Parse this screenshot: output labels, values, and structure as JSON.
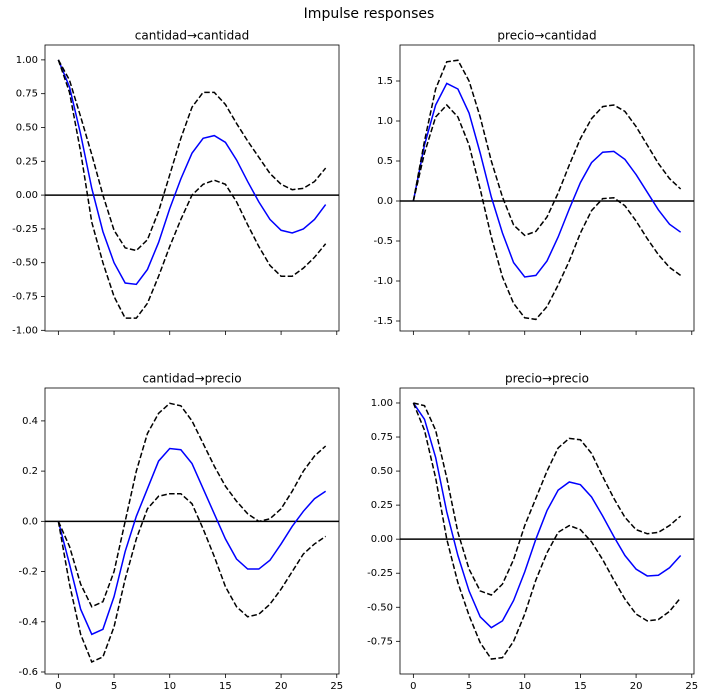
{
  "title": "Impulse responses",
  "chart_data": [
    {
      "type": "line",
      "title": "cantidad→cantidad",
      "x": [
        0,
        1,
        2,
        3,
        4,
        5,
        6,
        7,
        8,
        9,
        10,
        11,
        12,
        13,
        14,
        15,
        16,
        17,
        18,
        19,
        20,
        21,
        22,
        23,
        24
      ],
      "series": [
        {
          "color": "#0000ff",
          "dashed": false,
          "values": [
            1.0,
            0.8,
            0.45,
            0.05,
            -0.27,
            -0.5,
            -0.65,
            -0.66,
            -0.55,
            -0.35,
            -0.1,
            0.12,
            0.31,
            0.42,
            0.44,
            0.39,
            0.26,
            0.1,
            -0.05,
            -0.18,
            -0.26,
            -0.28,
            -0.25,
            -0.18,
            -0.07
          ]
        },
        {
          "color": "#000000",
          "dashed": true,
          "values": [
            1.0,
            0.85,
            0.58,
            0.3,
            0.0,
            -0.26,
            -0.39,
            -0.41,
            -0.33,
            -0.12,
            0.15,
            0.42,
            0.65,
            0.76,
            0.76,
            0.67,
            0.53,
            0.4,
            0.28,
            0.16,
            0.08,
            0.04,
            0.05,
            0.1,
            0.2
          ]
        },
        {
          "color": "#000000",
          "dashed": true,
          "values": [
            1.0,
            0.76,
            0.32,
            -0.2,
            -0.5,
            -0.75,
            -0.91,
            -0.91,
            -0.8,
            -0.6,
            -0.38,
            -0.18,
            0.0,
            0.08,
            0.11,
            0.08,
            -0.05,
            -0.22,
            -0.38,
            -0.52,
            -0.6,
            -0.6,
            -0.54,
            -0.46,
            -0.36
          ]
        }
      ],
      "hline": 0,
      "xlim": [
        -1.2,
        25.2
      ],
      "ylim": [
        -1.005,
        1.11
      ],
      "xticks": [
        0,
        5,
        10,
        15,
        20,
        25
      ],
      "show_xtick_labels": false,
      "yticks": [
        {
          "value": -1,
          "label": "-1.00"
        },
        -0.75,
        {
          "value": -0.5,
          "label": "-0.50"
        },
        -0.25,
        {
          "value": 0,
          "label": "0.00"
        },
        0.25,
        {
          "value": 0.5,
          "label": "0.50"
        },
        0.75,
        {
          "value": 1,
          "label": "1.00"
        }
      ]
    },
    {
      "type": "line",
      "title": "precio→cantidad",
      "x": [
        0,
        1,
        2,
        3,
        4,
        5,
        6,
        7,
        8,
        9,
        10,
        11,
        12,
        13,
        14,
        15,
        16,
        17,
        18,
        19,
        20,
        21,
        22,
        23,
        24
      ],
      "series": [
        {
          "color": "#0000ff",
          "dashed": false,
          "values": [
            0,
            0.7,
            1.2,
            1.47,
            1.4,
            1.1,
            0.6,
            0.05,
            -0.4,
            -0.77,
            -0.95,
            -0.93,
            -0.75,
            -0.45,
            -0.1,
            0.23,
            0.48,
            0.61,
            0.62,
            0.52,
            0.33,
            0.11,
            -0.11,
            -0.29,
            -0.39
          ]
        },
        {
          "color": "#000000",
          "dashed": true,
          "values": [
            0,
            0.75,
            1.4,
            1.74,
            1.76,
            1.5,
            1.05,
            0.5,
            0.05,
            -0.3,
            -0.43,
            -0.38,
            -0.2,
            0.1,
            0.45,
            0.78,
            1.03,
            1.18,
            1.2,
            1.12,
            0.93,
            0.7,
            0.47,
            0.28,
            0.15
          ]
        },
        {
          "color": "#000000",
          "dashed": true,
          "values": [
            0,
            0.6,
            1.05,
            1.2,
            1.05,
            0.7,
            0.15,
            -0.45,
            -0.95,
            -1.28,
            -1.46,
            -1.48,
            -1.32,
            -1.05,
            -0.75,
            -0.4,
            -0.12,
            0.03,
            0.04,
            -0.06,
            -0.25,
            -0.47,
            -0.67,
            -0.83,
            -0.93
          ]
        }
      ],
      "hline": 0,
      "xlim": [
        -1.2,
        25.2
      ],
      "ylim": [
        -1.625,
        1.95
      ],
      "xticks": [
        0,
        5,
        10,
        15,
        20,
        25
      ],
      "show_xtick_labels": false,
      "yticks": [
        -1.5,
        {
          "value": -1,
          "label": "-1.0"
        },
        -0.5,
        {
          "value": 0,
          "label": "0.0"
        },
        0.5,
        {
          "value": 1,
          "label": "1.0"
        },
        1.5
      ]
    },
    {
      "type": "line",
      "title": "cantidad→precio",
      "x": [
        0,
        1,
        2,
        3,
        4,
        5,
        6,
        7,
        8,
        9,
        10,
        11,
        12,
        13,
        14,
        15,
        16,
        17,
        18,
        19,
        20,
        21,
        22,
        23,
        24
      ],
      "series": [
        {
          "color": "#0000ff",
          "dashed": false,
          "values": [
            0,
            -0.17,
            -0.35,
            -0.45,
            -0.43,
            -0.3,
            -0.12,
            0.02,
            0.13,
            0.24,
            0.29,
            0.285,
            0.23,
            0.13,
            0.03,
            -0.07,
            -0.15,
            -0.19,
            -0.19,
            -0.155,
            -0.09,
            -0.02,
            0.04,
            0.09,
            0.12
          ]
        },
        {
          "color": "#000000",
          "dashed": true,
          "values": [
            0,
            -0.1,
            -0.25,
            -0.34,
            -0.32,
            -0.2,
            0.0,
            0.2,
            0.35,
            0.43,
            0.47,
            0.46,
            0.4,
            0.31,
            0.22,
            0.14,
            0.08,
            0.03,
            0.0,
            0.01,
            0.05,
            0.12,
            0.2,
            0.26,
            0.3
          ]
        },
        {
          "color": "#000000",
          "dashed": true,
          "values": [
            0,
            -0.25,
            -0.45,
            -0.56,
            -0.54,
            -0.42,
            -0.23,
            -0.07,
            0.05,
            0.1,
            0.11,
            0.11,
            0.07,
            -0.03,
            -0.14,
            -0.26,
            -0.34,
            -0.38,
            -0.37,
            -0.33,
            -0.27,
            -0.2,
            -0.13,
            -0.09,
            -0.06
          ]
        }
      ],
      "hline": 0,
      "xlim": [
        -1.2,
        25.2
      ],
      "ylim": [
        -0.608,
        0.531
      ],
      "xticks": [
        0,
        5,
        10,
        15,
        20,
        25
      ],
      "show_xtick_labels": true,
      "yticks": [
        -0.6,
        -0.4,
        -0.2,
        {
          "value": 0,
          "label": "0.0"
        },
        0.2,
        0.4
      ]
    },
    {
      "type": "line",
      "title": "precio→precio",
      "x": [
        0,
        1,
        2,
        3,
        4,
        5,
        6,
        7,
        8,
        9,
        10,
        11,
        12,
        13,
        14,
        15,
        16,
        17,
        18,
        19,
        20,
        21,
        22,
        23,
        24
      ],
      "series": [
        {
          "color": "#0000ff",
          "dashed": false,
          "values": [
            1.0,
            0.88,
            0.6,
            0.2,
            -0.12,
            -0.38,
            -0.57,
            -0.65,
            -0.6,
            -0.45,
            -0.24,
            0.0,
            0.21,
            0.36,
            0.42,
            0.4,
            0.31,
            0.17,
            0.02,
            -0.12,
            -0.22,
            -0.27,
            -0.265,
            -0.21,
            -0.12
          ]
        },
        {
          "color": "#000000",
          "dashed": true,
          "values": [
            1.0,
            0.98,
            0.8,
            0.45,
            0.05,
            -0.22,
            -0.38,
            -0.41,
            -0.33,
            -0.15,
            0.1,
            0.3,
            0.5,
            0.67,
            0.74,
            0.73,
            0.63,
            0.46,
            0.3,
            0.16,
            0.07,
            0.04,
            0.05,
            0.1,
            0.17
          ]
        },
        {
          "color": "#000000",
          "dashed": true,
          "values": [
            1.0,
            0.8,
            0.45,
            0.0,
            -0.32,
            -0.56,
            -0.76,
            -0.88,
            -0.87,
            -0.75,
            -0.55,
            -0.3,
            -0.1,
            0.05,
            0.1,
            0.07,
            -0.02,
            -0.15,
            -0.3,
            -0.44,
            -0.55,
            -0.6,
            -0.59,
            -0.53,
            -0.43
          ]
        }
      ],
      "hline": 0,
      "xlim": [
        -1.2,
        25.2
      ],
      "ylim": [
        -0.99,
        1.11
      ],
      "xticks": [
        0,
        5,
        10,
        15,
        20,
        25
      ],
      "show_xtick_labels": true,
      "yticks": [
        -0.75,
        {
          "value": -0.5,
          "label": "-0.50"
        },
        -0.25,
        {
          "value": 0,
          "label": "0.00"
        },
        0.25,
        {
          "value": 0.5,
          "label": "0.50"
        },
        0.75,
        {
          "value": 1,
          "label": "1.00"
        }
      ]
    }
  ]
}
